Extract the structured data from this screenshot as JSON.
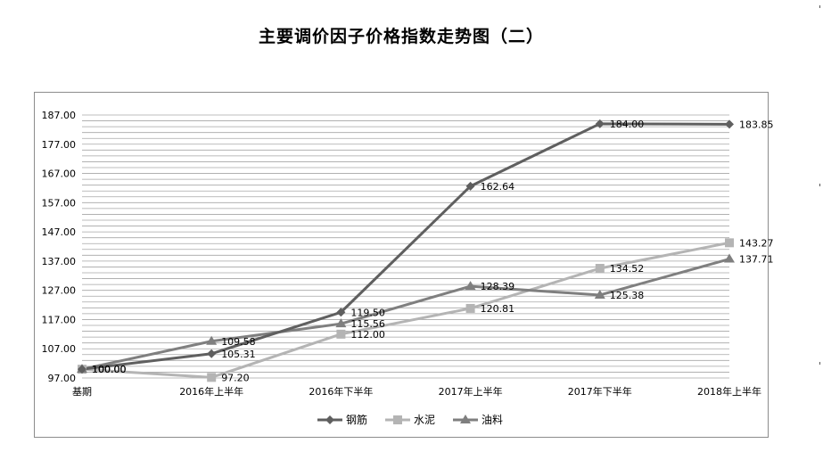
{
  "page": {
    "title": "主要调价因子价格指数走势图（二）"
  },
  "chart_data": {
    "type": "line",
    "title": "主要调价因子价格指数走势图（二）",
    "categories": [
      "基期",
      "2016年上半年",
      "2016年下半年",
      "2017年上半年",
      "2017年下半年",
      "2018年上半年"
    ],
    "yticks": [
      "97.00",
      "107.00",
      "117.00",
      "127.00",
      "137.00",
      "147.00",
      "157.00",
      "167.00",
      "177.00",
      "187.00"
    ],
    "ylim": [
      97,
      187
    ],
    "grid": true,
    "legend_position": "bottom",
    "series": [
      {
        "name": "钢筋",
        "color": "#5f5f5f",
        "marker": "diamond",
        "values": [
          100.0,
          105.31,
          119.5,
          162.64,
          184.0,
          183.85
        ],
        "labels": [
          "100.00",
          "105.31",
          "119.50",
          "162.64",
          "184.00",
          "183.85"
        ]
      },
      {
        "name": "水泥",
        "color": "#b4b4b4",
        "marker": "square",
        "values": [
          100.0,
          97.2,
          112.0,
          120.81,
          134.52,
          143.27
        ],
        "labels": [
          "100.00",
          "97.20",
          "112.00",
          "120.81",
          "134.52",
          "143.27"
        ]
      },
      {
        "name": "油料",
        "color": "#7f7f7f",
        "marker": "triangle",
        "values": [
          100.0,
          109.58,
          115.56,
          128.39,
          125.38,
          137.71
        ],
        "labels": [
          "100.00",
          "109.58",
          "115.56",
          "128.39",
          "125.38",
          "137.71"
        ]
      }
    ]
  }
}
